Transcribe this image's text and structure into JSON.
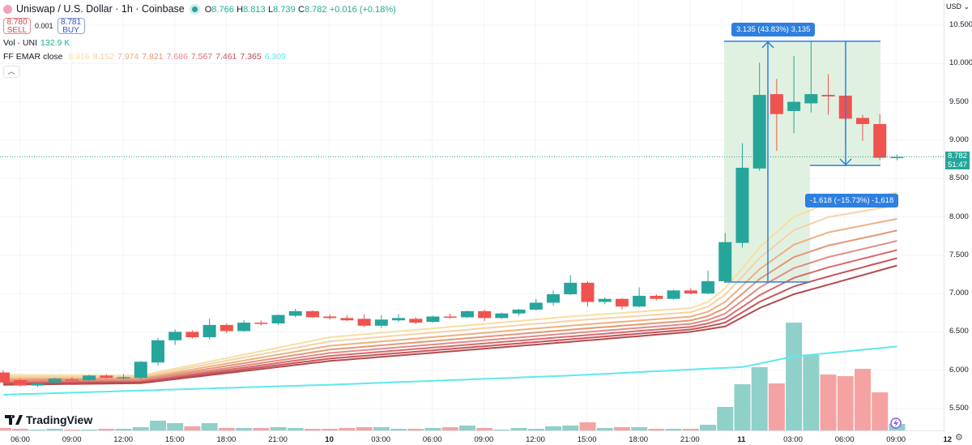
{
  "header": {
    "title": "Uniswap / U.S. Dollar · 1h · Coinbase",
    "symbol_icon": "uniswap-logo",
    "ohlc": {
      "o_label": "O",
      "o": "8.766",
      "h_label": "H",
      "h": "8.813",
      "l_label": "L",
      "l": "8.739",
      "c_label": "C",
      "c": "8.782",
      "change": "+0.016 (+0.18%)"
    },
    "sell": {
      "price": "8.780",
      "label": "SELL"
    },
    "spread": "0.001",
    "buy": {
      "price": "8.781",
      "label": "BUY"
    },
    "volume": {
      "label": "Vol · UNI",
      "value": "132.9 K"
    },
    "ema": {
      "label": "FF EMAR close",
      "values": [
        "8.316",
        "8.152",
        "7.974",
        "7.821",
        "7.686",
        "7.567",
        "7.461",
        "7.365",
        "6.309"
      ]
    },
    "collapse_icon": "chevron-up"
  },
  "price_axis": {
    "currency": "USD",
    "ticks": [
      "10.500",
      "10.000",
      "9.500",
      "9.000",
      "8.500",
      "8.000",
      "7.500",
      "7.000",
      "6.500",
      "6.000",
      "5.500"
    ],
    "last_price": "8.782",
    "countdown": "51:47"
  },
  "time_axis": {
    "ticks": [
      "06:00",
      "09:00",
      "12:00",
      "15:00",
      "18:00",
      "21:00",
      "10",
      "03:00",
      "06:00",
      "09:00",
      "12:00",
      "15:00",
      "18:00",
      "21:00",
      "11",
      "03:00",
      "06:00",
      "09:00",
      "12"
    ]
  },
  "measure": {
    "up_label": "3.135 (43.83%) 3,135",
    "down_label": "-1.618 (−15.73%) -1,618"
  },
  "logo_text": "TradingView",
  "colors": {
    "up": "#26a69a",
    "down": "#ef5350",
    "vol_up": "#8fd0c9",
    "vol_down": "#f5a3a2",
    "ema_slow": "#5ee8ee",
    "measure": "#2d7fe0",
    "measure_fill": "#dcefdc",
    "ema": [
      "#f7dfa0",
      "#f5d2a8",
      "#eeb07e",
      "#e49676",
      "#e08c86",
      "#d86a6a",
      "#c8545a",
      "#b24a4e"
    ]
  },
  "chart_data": {
    "type": "candlestick",
    "interval": "1h",
    "start": "05:00",
    "ylim": [
      5.5,
      10.5
    ],
    "ohlc": [
      [
        5.97,
        6.0,
        5.83,
        5.84
      ],
      [
        5.87,
        5.89,
        5.79,
        5.8
      ],
      [
        5.8,
        5.84,
        5.78,
        5.83
      ],
      [
        5.84,
        5.9,
        5.82,
        5.89
      ],
      [
        5.88,
        5.91,
        5.86,
        5.87
      ],
      [
        5.87,
        5.94,
        5.86,
        5.93
      ],
      [
        5.93,
        5.95,
        5.89,
        5.9
      ],
      [
        5.9,
        5.95,
        5.88,
        5.91
      ],
      [
        5.9,
        6.12,
        5.88,
        6.11
      ],
      [
        6.1,
        6.42,
        6.06,
        6.39
      ],
      [
        6.39,
        6.53,
        6.33,
        6.5
      ],
      [
        6.5,
        6.52,
        6.41,
        6.43
      ],
      [
        6.43,
        6.67,
        6.4,
        6.59
      ],
      [
        6.59,
        6.61,
        6.48,
        6.51
      ],
      [
        6.51,
        6.65,
        6.5,
        6.62
      ],
      [
        6.62,
        6.65,
        6.58,
        6.61
      ],
      [
        6.61,
        6.73,
        6.59,
        6.72
      ],
      [
        6.71,
        6.8,
        6.69,
        6.77
      ],
      [
        6.77,
        6.78,
        6.68,
        6.69
      ],
      [
        6.7,
        6.73,
        6.66,
        6.68
      ],
      [
        6.68,
        6.72,
        6.64,
        6.65
      ],
      [
        6.67,
        6.73,
        6.56,
        6.58
      ],
      [
        6.58,
        6.72,
        6.55,
        6.66
      ],
      [
        6.65,
        6.73,
        6.63,
        6.68
      ],
      [
        6.67,
        6.69,
        6.6,
        6.62
      ],
      [
        6.63,
        6.71,
        6.62,
        6.7
      ],
      [
        6.7,
        6.74,
        6.67,
        6.69
      ],
      [
        6.69,
        6.78,
        6.68,
        6.77
      ],
      [
        6.77,
        6.79,
        6.64,
        6.68
      ],
      [
        6.68,
        6.75,
        6.67,
        6.74
      ],
      [
        6.74,
        6.8,
        6.71,
        6.79
      ],
      [
        6.79,
        6.93,
        6.78,
        6.88
      ],
      [
        6.88,
        7.04,
        6.84,
        6.99
      ],
      [
        6.99,
        7.24,
        6.98,
        7.14
      ],
      [
        7.14,
        7.16,
        6.83,
        6.89
      ],
      [
        6.89,
        6.95,
        6.86,
        6.93
      ],
      [
        6.93,
        6.94,
        6.79,
        6.83
      ],
      [
        6.83,
        7.08,
        6.82,
        6.97
      ],
      [
        6.97,
        6.99,
        6.91,
        6.93
      ],
      [
        6.93,
        7.05,
        6.92,
        7.04
      ],
      [
        7.04,
        7.07,
        6.99,
        7.0
      ],
      [
        7.0,
        7.3,
        6.99,
        7.16
      ],
      [
        7.16,
        7.79,
        7.14,
        7.67
      ],
      [
        7.66,
        8.96,
        7.6,
        8.64
      ],
      [
        8.63,
        10.01,
        8.6,
        9.59
      ],
      [
        9.6,
        9.8,
        8.86,
        9.34
      ],
      [
        9.38,
        10.1,
        9.09,
        9.5
      ],
      [
        9.48,
        10.29,
        9.36,
        9.6
      ],
      [
        9.59,
        9.86,
        9.33,
        9.57
      ],
      [
        9.58,
        9.6,
        8.95,
        9.28
      ],
      [
        9.29,
        9.33,
        8.99,
        9.21
      ],
      [
        9.21,
        9.34,
        8.74,
        8.77
      ],
      [
        8.766,
        8.813,
        8.739,
        8.782
      ]
    ],
    "volume_k": [
      50,
      33,
      17,
      33,
      17,
      17,
      33,
      33,
      66,
      199,
      149,
      83,
      149,
      50,
      50,
      50,
      66,
      50,
      33,
      33,
      50,
      66,
      66,
      33,
      33,
      50,
      66,
      100,
      50,
      17,
      50,
      33,
      83,
      100,
      166,
      50,
      66,
      66,
      33,
      33,
      33,
      116,
      481,
      946,
      1295,
      963,
      2208,
      1544,
      1145,
      1112,
      1262,
      780,
      132.9
    ],
    "ema_fast_top": [
      [
        0,
        5.94
      ],
      [
        8,
        5.93
      ],
      [
        19,
        6.43
      ],
      [
        33,
        6.7
      ],
      [
        40,
        6.81
      ],
      [
        41,
        6.89
      ],
      [
        42,
        7.07
      ],
      [
        43,
        7.33
      ],
      [
        44,
        7.6
      ],
      [
        46,
        8.0
      ],
      [
        48,
        8.18
      ],
      [
        52,
        8.316
      ]
    ],
    "ema_slow_bottom": [
      [
        0,
        5.81
      ],
      [
        8,
        5.83
      ],
      [
        19,
        6.12
      ],
      [
        33,
        6.37
      ],
      [
        40,
        6.5
      ],
      [
        42,
        6.57
      ],
      [
        44,
        6.81
      ],
      [
        46,
        6.99
      ],
      [
        52,
        7.365
      ]
    ],
    "ema_long": [
      [
        0,
        5.68
      ],
      [
        19,
        5.81
      ],
      [
        33,
        5.93
      ],
      [
        41,
        6.02
      ],
      [
        43,
        6.04
      ],
      [
        46,
        6.18
      ],
      [
        52,
        6.309
      ]
    ],
    "measures": [
      {
        "from": [
          42,
          7.15
        ],
        "to": [
          47,
          10.29
        ],
        "change": 3.135,
        "pct": 43.83
      },
      {
        "from": [
          47,
          10.29
        ],
        "to": [
          51,
          8.67
        ],
        "change": -1.618,
        "pct": -15.73
      }
    ]
  }
}
